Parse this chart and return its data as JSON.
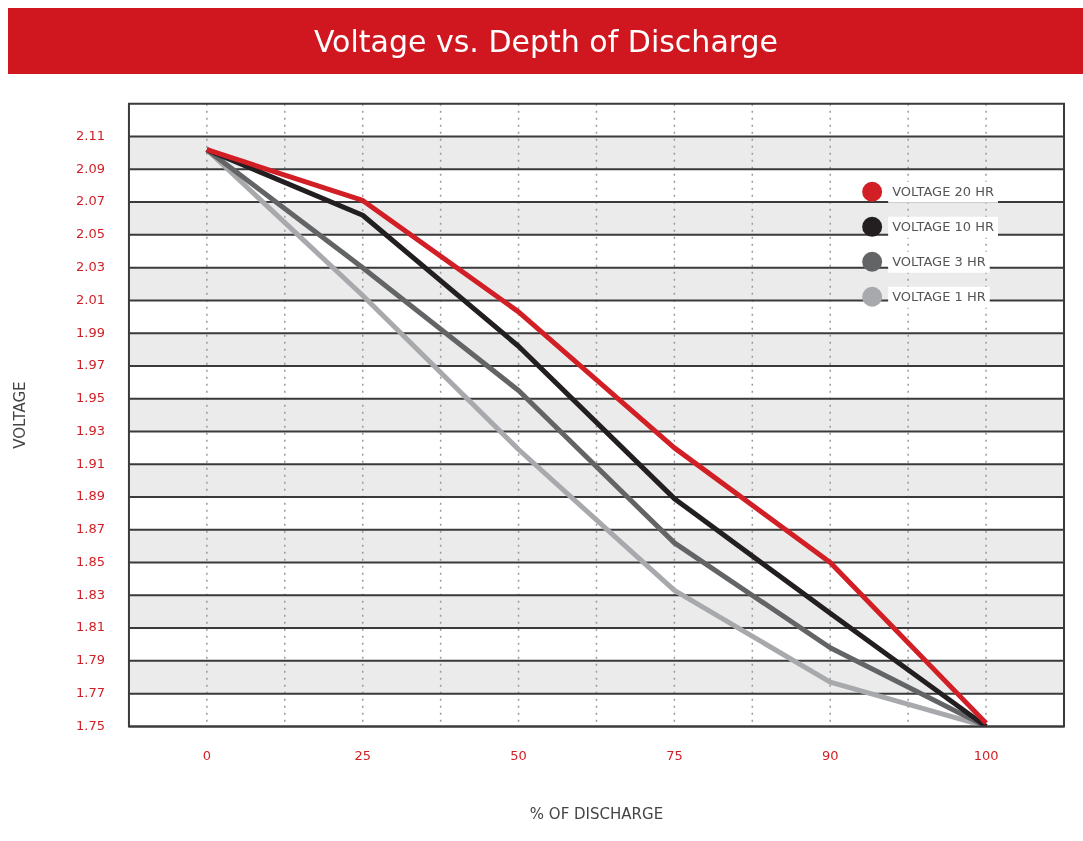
{
  "chart_data": {
    "type": "line",
    "title": "Voltage vs. Depth of Discharge",
    "xlabel": "% OF DISCHARGE",
    "ylabel": "VOLTAGE",
    "categories": [
      "0",
      "25",
      "50",
      "75",
      "90",
      "100"
    ],
    "series": [
      {
        "name": "VOLTAGE 20 HR",
        "color": "#d21f26",
        "values": [
          2.102,
          2.071,
          2.003,
          1.92,
          1.85,
          1.752
        ]
      },
      {
        "name": "VOLTAGE 10 HR",
        "color": "#231f20",
        "values": [
          2.102,
          2.062,
          1.982,
          1.889,
          1.819,
          1.75
        ]
      },
      {
        "name": "VOLTAGE 3 HR",
        "color": "#636466",
        "values": [
          2.102,
          2.03,
          1.955,
          1.862,
          1.798,
          1.75
        ]
      },
      {
        "name": "VOLTAGE 1 HR",
        "color": "#a7a9ac",
        "values": [
          2.102,
          2.013,
          1.919,
          1.833,
          1.777,
          1.75
        ]
      }
    ],
    "ylim": [
      1.75,
      2.13
    ],
    "yticks": [
      1.75,
      1.77,
      1.79,
      1.81,
      1.83,
      1.85,
      1.87,
      1.89,
      1.91,
      1.93,
      1.95,
      1.97,
      1.99,
      2.01,
      2.03,
      2.05,
      2.07,
      2.09,
      2.11
    ],
    "grid": true,
    "legend": "top right",
    "marker": "none",
    "line_style": "solid"
  }
}
